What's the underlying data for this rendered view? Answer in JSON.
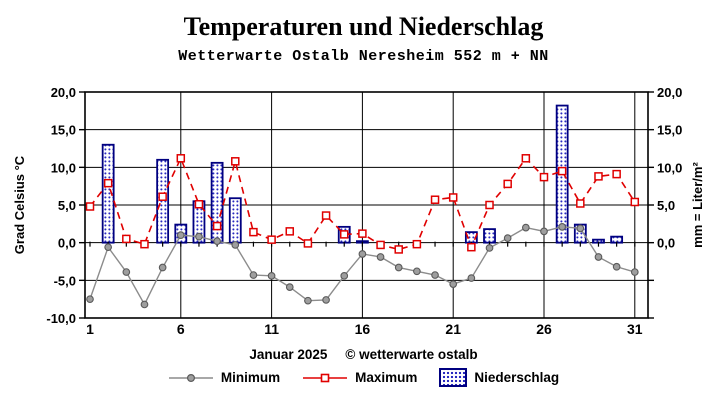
{
  "header": {
    "title": "Temperaturen und Niederschlag",
    "subtitle": "Wetterwarte Ostalb Neresheim 552 m + NN"
  },
  "footer": {
    "month": "Januar 2025",
    "credit": "© wetterwarte ostalb"
  },
  "legend": {
    "items": [
      {
        "label": "Minimum",
        "marker": "gray-line-filled-circle"
      },
      {
        "label": "Maximum",
        "marker": "red-dashed-line-open-square"
      },
      {
        "label": "Niederschlag",
        "marker": "blue-dotted-bar"
      }
    ]
  },
  "colors": {
    "minimum_line": "#8c8c8c",
    "minimum_marker_fill": "#9e9e9e",
    "minimum_marker_stroke": "#5a5a5a",
    "maximum_line": "#e00000",
    "precip_bar_outline": "#000080",
    "precip_bar_dot": "#2a2ac0",
    "grid": "#000000",
    "background": "#ffffff"
  },
  "chart_data": {
    "type": "bar",
    "subtype": "combo bar + two temperature lines",
    "title": "Temperaturen und Niederschlag",
    "subtitle": "Wetterwarte Ostalb Neresheim 552 m + NN",
    "xlabel": "Januar 2025",
    "grid": true,
    "x_days": [
      1,
      2,
      3,
      4,
      5,
      6,
      7,
      8,
      9,
      10,
      11,
      12,
      13,
      14,
      15,
      16,
      17,
      18,
      19,
      20,
      21,
      22,
      23,
      24,
      25,
      26,
      27,
      28,
      29,
      30,
      31
    ],
    "series": [
      {
        "name": "Minimum",
        "type": "line",
        "marker": "circle",
        "line_style": "solid",
        "color": "#8c8c8c",
        "unit": "°C",
        "values": [
          -7.5,
          -0.6,
          -3.9,
          -8.2,
          -3.3,
          1.0,
          0.8,
          0.2,
          -0.3,
          -4.3,
          -4.4,
          -5.9,
          -7.7,
          -7.6,
          -4.4,
          -1.5,
          -1.9,
          -3.3,
          -3.8,
          -4.3,
          -5.5,
          -4.7,
          -0.7,
          0.6,
          2.0,
          1.5,
          2.1,
          1.9,
          -1.9,
          -3.2,
          -3.9
        ]
      },
      {
        "name": "Maximum",
        "type": "line",
        "marker": "open-square",
        "line_style": "dashed",
        "color": "#e00000",
        "unit": "°C",
        "values": [
          4.8,
          7.9,
          0.5,
          -0.2,
          6.1,
          11.2,
          5.1,
          2.2,
          10.8,
          1.4,
          0.4,
          1.5,
          -0.1,
          3.6,
          1.1,
          1.2,
          -0.3,
          -0.9,
          -0.2,
          5.7,
          6.0,
          -0.6,
          5.0,
          7.8,
          11.2,
          8.7,
          9.5,
          5.2,
          8.8,
          9.1,
          5.4
        ]
      },
      {
        "name": "Niederschlag",
        "type": "bar",
        "fill": "blue dotted hatch on white",
        "color": "#000080",
        "unit": "mm",
        "values": [
          0,
          13.0,
          0,
          0,
          11.0,
          2.4,
          5.5,
          10.6,
          5.9,
          0,
          0,
          0,
          0,
          0,
          2.1,
          0.2,
          0,
          0,
          0,
          0,
          0,
          1.4,
          1.8,
          0,
          0,
          0,
          18.2,
          2.4,
          0.4,
          0.8,
          0
        ]
      }
    ],
    "axes": {
      "left": {
        "title": "Grad Celsius °C",
        "range": [
          -10,
          20
        ],
        "tick_values": [
          20,
          15,
          10,
          5,
          0,
          -5,
          -10
        ],
        "tick_labels": [
          "20,0",
          "15,0",
          "10,0",
          "5,0",
          "0,0",
          "-5,0",
          "-10,0"
        ]
      },
      "right": {
        "title": "mm = Liter/m²",
        "range": [
          -10,
          20
        ],
        "tick_values": [
          20,
          15,
          10,
          5,
          0
        ],
        "tick_labels": [
          "20,0",
          "15,0",
          "10,0",
          "5,0",
          "0,0"
        ]
      },
      "x": {
        "range": [
          1,
          31
        ],
        "tick_values": [
          1,
          6,
          11,
          16,
          21,
          26,
          31
        ],
        "tick_labels": [
          "1",
          "6",
          "11",
          "16",
          "21",
          "26",
          "31"
        ],
        "gridline_days": [
          6,
          11,
          16,
          21,
          26,
          31
        ]
      }
    }
  }
}
